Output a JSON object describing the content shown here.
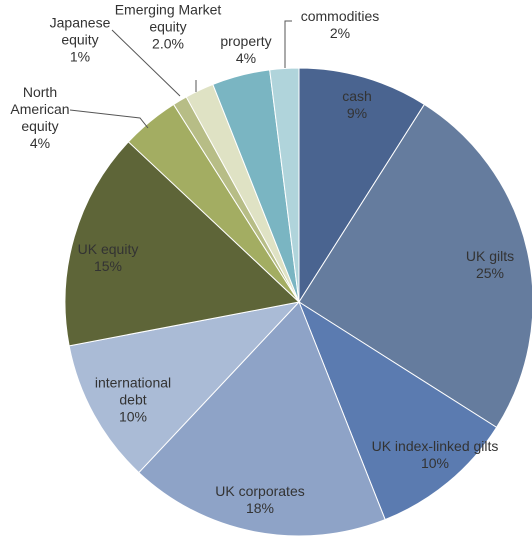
{
  "chart_data": {
    "type": "pie",
    "categories": [
      "cash",
      "UK gilts",
      "UK index-linked gilts",
      "UK corporates",
      "international debt",
      "UK equity",
      "North American equity",
      "Japanese equity",
      "Emerging Market equity",
      "property",
      "commodities"
    ],
    "values": [
      9,
      25,
      10,
      18,
      10,
      15,
      4,
      1,
      2.0,
      4,
      2
    ],
    "value_labels": [
      "9%",
      "25%",
      "10%",
      "18%",
      "10%",
      "15%",
      "4%",
      "1%",
      "2.0%",
      "4%",
      "2%"
    ],
    "colors": [
      "#4a6490",
      "#657c9e",
      "#5b7bb0",
      "#8ea3c7",
      "#aabbd6",
      "#5e6538",
      "#a3ad62",
      "#b7bd86",
      "#dfe2c4",
      "#7ab5c2",
      "#b0d4db"
    ]
  }
}
